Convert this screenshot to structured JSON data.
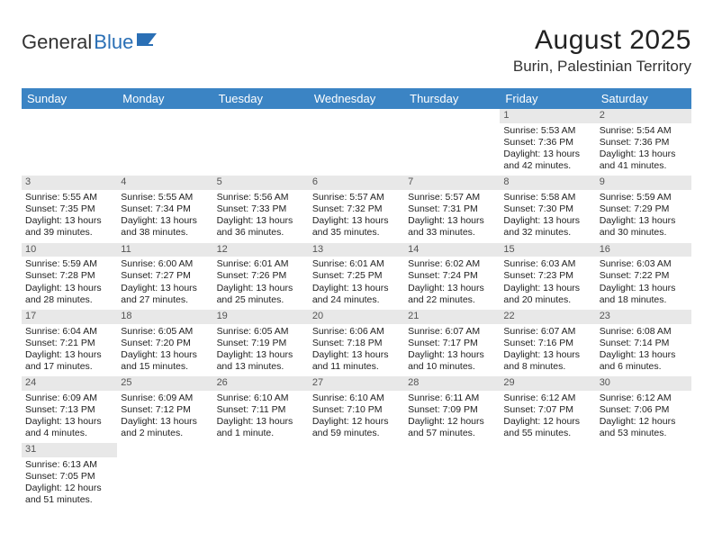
{
  "logo": {
    "part1": "General",
    "part2": "Blue"
  },
  "title": "August 2025",
  "location": "Burin, Palestinian Territory",
  "colors": {
    "header_bg": "#3b84c4",
    "header_text": "#ffffff",
    "daynum_bg": "#e8e8e8",
    "logo_accent": "#2a6fb5"
  },
  "weekdays": [
    "Sunday",
    "Monday",
    "Tuesday",
    "Wednesday",
    "Thursday",
    "Friday",
    "Saturday"
  ],
  "weeks": [
    [
      {
        "n": "",
        "sun": "",
        "set": "",
        "d1": "",
        "d2": ""
      },
      {
        "n": "",
        "sun": "",
        "set": "",
        "d1": "",
        "d2": ""
      },
      {
        "n": "",
        "sun": "",
        "set": "",
        "d1": "",
        "d2": ""
      },
      {
        "n": "",
        "sun": "",
        "set": "",
        "d1": "",
        "d2": ""
      },
      {
        "n": "",
        "sun": "",
        "set": "",
        "d1": "",
        "d2": ""
      },
      {
        "n": "1",
        "sun": "Sunrise: 5:53 AM",
        "set": "Sunset: 7:36 PM",
        "d1": "Daylight: 13 hours",
        "d2": "and 42 minutes."
      },
      {
        "n": "2",
        "sun": "Sunrise: 5:54 AM",
        "set": "Sunset: 7:36 PM",
        "d1": "Daylight: 13 hours",
        "d2": "and 41 minutes."
      }
    ],
    [
      {
        "n": "3",
        "sun": "Sunrise: 5:55 AM",
        "set": "Sunset: 7:35 PM",
        "d1": "Daylight: 13 hours",
        "d2": "and 39 minutes."
      },
      {
        "n": "4",
        "sun": "Sunrise: 5:55 AM",
        "set": "Sunset: 7:34 PM",
        "d1": "Daylight: 13 hours",
        "d2": "and 38 minutes."
      },
      {
        "n": "5",
        "sun": "Sunrise: 5:56 AM",
        "set": "Sunset: 7:33 PM",
        "d1": "Daylight: 13 hours",
        "d2": "and 36 minutes."
      },
      {
        "n": "6",
        "sun": "Sunrise: 5:57 AM",
        "set": "Sunset: 7:32 PM",
        "d1": "Daylight: 13 hours",
        "d2": "and 35 minutes."
      },
      {
        "n": "7",
        "sun": "Sunrise: 5:57 AM",
        "set": "Sunset: 7:31 PM",
        "d1": "Daylight: 13 hours",
        "d2": "and 33 minutes."
      },
      {
        "n": "8",
        "sun": "Sunrise: 5:58 AM",
        "set": "Sunset: 7:30 PM",
        "d1": "Daylight: 13 hours",
        "d2": "and 32 minutes."
      },
      {
        "n": "9",
        "sun": "Sunrise: 5:59 AM",
        "set": "Sunset: 7:29 PM",
        "d1": "Daylight: 13 hours",
        "d2": "and 30 minutes."
      }
    ],
    [
      {
        "n": "10",
        "sun": "Sunrise: 5:59 AM",
        "set": "Sunset: 7:28 PM",
        "d1": "Daylight: 13 hours",
        "d2": "and 28 minutes."
      },
      {
        "n": "11",
        "sun": "Sunrise: 6:00 AM",
        "set": "Sunset: 7:27 PM",
        "d1": "Daylight: 13 hours",
        "d2": "and 27 minutes."
      },
      {
        "n": "12",
        "sun": "Sunrise: 6:01 AM",
        "set": "Sunset: 7:26 PM",
        "d1": "Daylight: 13 hours",
        "d2": "and 25 minutes."
      },
      {
        "n": "13",
        "sun": "Sunrise: 6:01 AM",
        "set": "Sunset: 7:25 PM",
        "d1": "Daylight: 13 hours",
        "d2": "and 24 minutes."
      },
      {
        "n": "14",
        "sun": "Sunrise: 6:02 AM",
        "set": "Sunset: 7:24 PM",
        "d1": "Daylight: 13 hours",
        "d2": "and 22 minutes."
      },
      {
        "n": "15",
        "sun": "Sunrise: 6:03 AM",
        "set": "Sunset: 7:23 PM",
        "d1": "Daylight: 13 hours",
        "d2": "and 20 minutes."
      },
      {
        "n": "16",
        "sun": "Sunrise: 6:03 AM",
        "set": "Sunset: 7:22 PM",
        "d1": "Daylight: 13 hours",
        "d2": "and 18 minutes."
      }
    ],
    [
      {
        "n": "17",
        "sun": "Sunrise: 6:04 AM",
        "set": "Sunset: 7:21 PM",
        "d1": "Daylight: 13 hours",
        "d2": "and 17 minutes."
      },
      {
        "n": "18",
        "sun": "Sunrise: 6:05 AM",
        "set": "Sunset: 7:20 PM",
        "d1": "Daylight: 13 hours",
        "d2": "and 15 minutes."
      },
      {
        "n": "19",
        "sun": "Sunrise: 6:05 AM",
        "set": "Sunset: 7:19 PM",
        "d1": "Daylight: 13 hours",
        "d2": "and 13 minutes."
      },
      {
        "n": "20",
        "sun": "Sunrise: 6:06 AM",
        "set": "Sunset: 7:18 PM",
        "d1": "Daylight: 13 hours",
        "d2": "and 11 minutes."
      },
      {
        "n": "21",
        "sun": "Sunrise: 6:07 AM",
        "set": "Sunset: 7:17 PM",
        "d1": "Daylight: 13 hours",
        "d2": "and 10 minutes."
      },
      {
        "n": "22",
        "sun": "Sunrise: 6:07 AM",
        "set": "Sunset: 7:16 PM",
        "d1": "Daylight: 13 hours",
        "d2": "and 8 minutes."
      },
      {
        "n": "23",
        "sun": "Sunrise: 6:08 AM",
        "set": "Sunset: 7:14 PM",
        "d1": "Daylight: 13 hours",
        "d2": "and 6 minutes."
      }
    ],
    [
      {
        "n": "24",
        "sun": "Sunrise: 6:09 AM",
        "set": "Sunset: 7:13 PM",
        "d1": "Daylight: 13 hours",
        "d2": "and 4 minutes."
      },
      {
        "n": "25",
        "sun": "Sunrise: 6:09 AM",
        "set": "Sunset: 7:12 PM",
        "d1": "Daylight: 13 hours",
        "d2": "and 2 minutes."
      },
      {
        "n": "26",
        "sun": "Sunrise: 6:10 AM",
        "set": "Sunset: 7:11 PM",
        "d1": "Daylight: 13 hours",
        "d2": "and 1 minute."
      },
      {
        "n": "27",
        "sun": "Sunrise: 6:10 AM",
        "set": "Sunset: 7:10 PM",
        "d1": "Daylight: 12 hours",
        "d2": "and 59 minutes."
      },
      {
        "n": "28",
        "sun": "Sunrise: 6:11 AM",
        "set": "Sunset: 7:09 PM",
        "d1": "Daylight: 12 hours",
        "d2": "and 57 minutes."
      },
      {
        "n": "29",
        "sun": "Sunrise: 6:12 AM",
        "set": "Sunset: 7:07 PM",
        "d1": "Daylight: 12 hours",
        "d2": "and 55 minutes."
      },
      {
        "n": "30",
        "sun": "Sunrise: 6:12 AM",
        "set": "Sunset: 7:06 PM",
        "d1": "Daylight: 12 hours",
        "d2": "and 53 minutes."
      }
    ],
    [
      {
        "n": "31",
        "sun": "Sunrise: 6:13 AM",
        "set": "Sunset: 7:05 PM",
        "d1": "Daylight: 12 hours",
        "d2": "and 51 minutes."
      },
      {
        "n": "",
        "sun": "",
        "set": "",
        "d1": "",
        "d2": ""
      },
      {
        "n": "",
        "sun": "",
        "set": "",
        "d1": "",
        "d2": ""
      },
      {
        "n": "",
        "sun": "",
        "set": "",
        "d1": "",
        "d2": ""
      },
      {
        "n": "",
        "sun": "",
        "set": "",
        "d1": "",
        "d2": ""
      },
      {
        "n": "",
        "sun": "",
        "set": "",
        "d1": "",
        "d2": ""
      },
      {
        "n": "",
        "sun": "",
        "set": "",
        "d1": "",
        "d2": ""
      }
    ]
  ]
}
